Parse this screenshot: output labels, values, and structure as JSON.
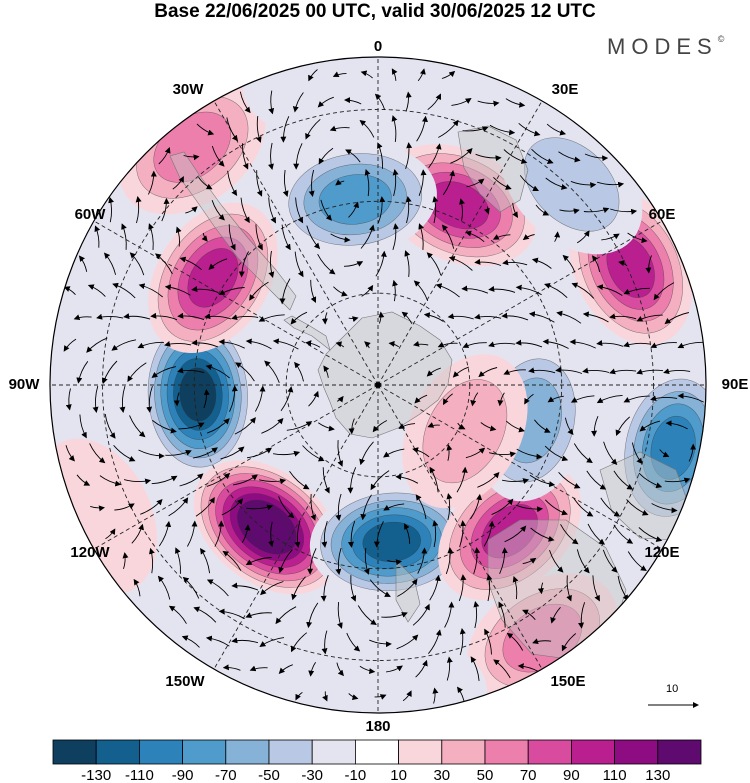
{
  "header": {
    "title": "Base 22/06/2025 00 UTC, valid 30/06/2025 12 UTC",
    "brand": "MODES",
    "brand_mark": "©"
  },
  "map": {
    "projection": "south-polar-stereographic",
    "longitude_labels": [
      "0",
      "30E",
      "60E",
      "90E",
      "120E",
      "150E",
      "180",
      "150W",
      "120W",
      "90W",
      "60W",
      "30W"
    ],
    "vector_reference": {
      "label": "10"
    }
  },
  "colorbar": {
    "ticks": [
      "-130",
      "-110",
      "-90",
      "-70",
      "-50",
      "-30",
      "-10",
      "10",
      "30",
      "50",
      "70",
      "90",
      "110",
      "130"
    ],
    "colors": [
      "#0e3f5e",
      "#13608f",
      "#2c82b9",
      "#4f9bcb",
      "#86b2d8",
      "#b9c8e4",
      "#e4e4f1",
      "#ffffff",
      "#f9d6dc",
      "#f4afc0",
      "#ec7fac",
      "#d94b9e",
      "#b91f8e",
      "#8e0c82",
      "#5e0a6e"
    ]
  },
  "anomaly_centers": [
    {
      "lon": -93,
      "r": 0.55,
      "value": -140
    },
    {
      "lon": -142,
      "r": 0.55,
      "value": 150
    },
    {
      "lon": 175,
      "r": 0.48,
      "value": -125
    },
    {
      "lon": 138,
      "r": 0.6,
      "value": 90
    },
    {
      "lon": 147,
      "r": 0.92,
      "value": 55
    },
    {
      "lon": 102,
      "r": 0.92,
      "value": -100
    },
    {
      "lon": 103,
      "r": 0.48,
      "value": -55
    },
    {
      "lon": 65,
      "r": 0.85,
      "value": 95
    },
    {
      "lon": 24,
      "r": 0.6,
      "value": 100
    },
    {
      "lon": 44,
      "r": 0.85,
      "value": -35
    },
    {
      "lon": -7,
      "r": 0.57,
      "value": -85
    },
    {
      "lon": -57,
      "r": 0.6,
      "value": 100
    },
    {
      "lon": -38,
      "r": 0.92,
      "value": 55
    },
    {
      "lon": -70,
      "r": 0.95,
      "value": -25
    },
    {
      "lon": -115,
      "r": 0.95,
      "value": 25
    },
    {
      "lon": -155,
      "r": 0.9,
      "value": -15
    },
    {
      "lon": 175,
      "r": 0.95,
      "value": -20
    },
    {
      "lon": 118,
      "r": 0.3,
      "value": 35
    },
    {
      "lon": -10,
      "r": 0.95,
      "value": -20
    }
  ]
}
